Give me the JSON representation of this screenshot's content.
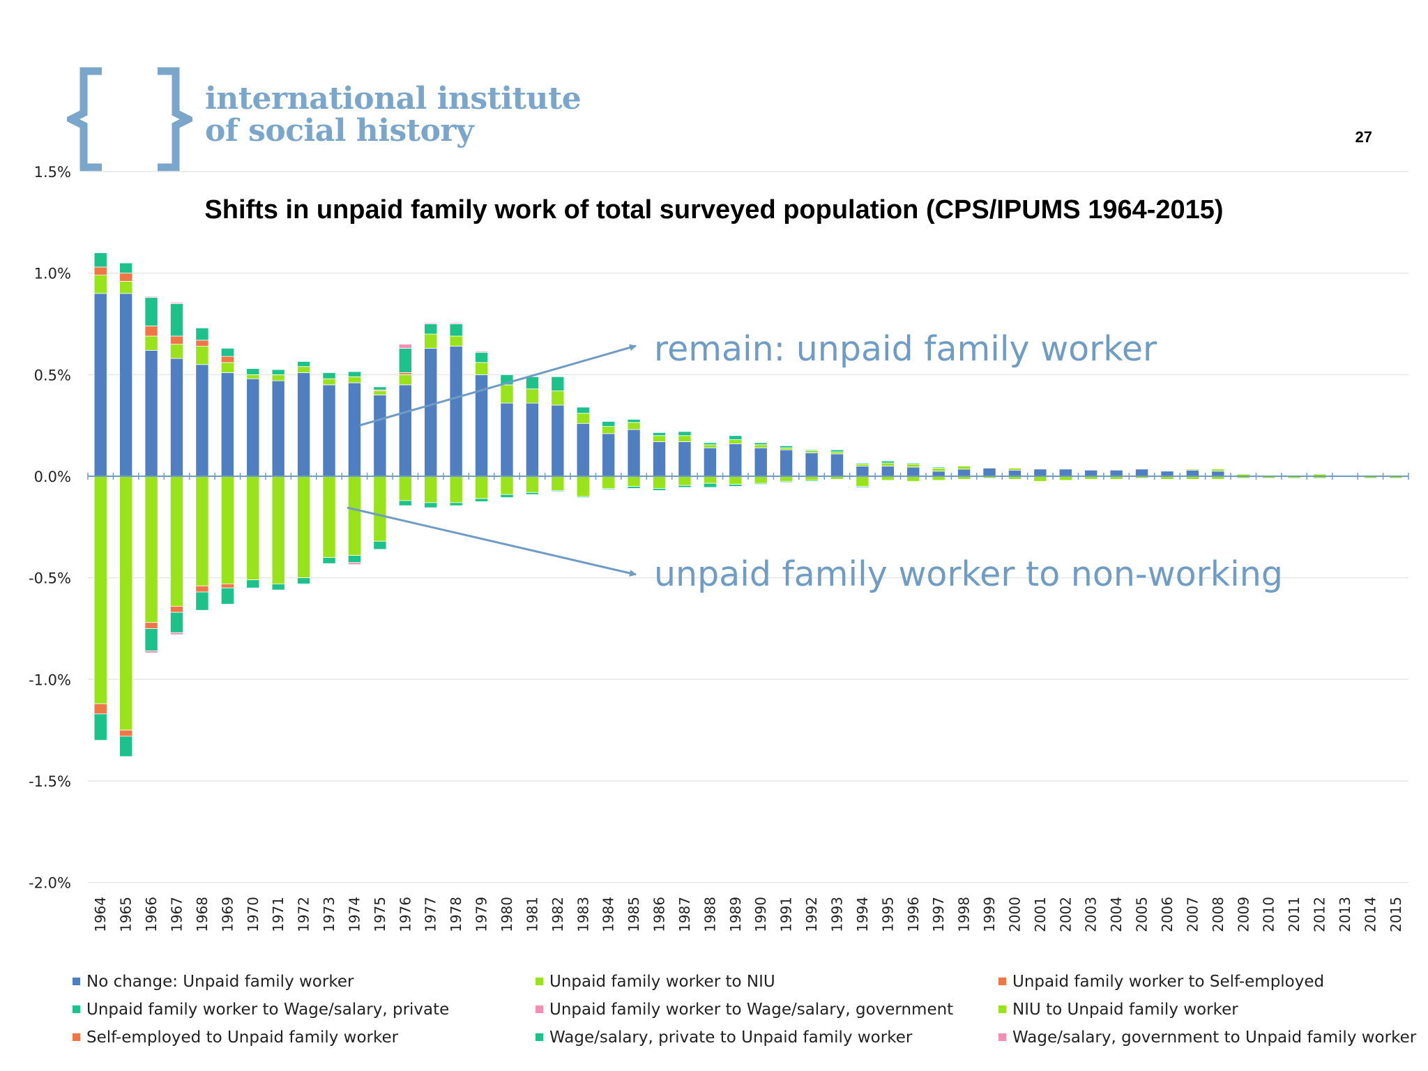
{
  "slide": {
    "logo_line1": "international institute",
    "logo_line2": "of social history",
    "page_number": "27",
    "logo_color": "#7aa6cc"
  },
  "annotations": {
    "remain": "remain: unpaid family worker",
    "nonworking": "unpaid family worker to non-working",
    "color": "#6f9cc4"
  },
  "chart_data": {
    "type": "bar",
    "stacked": true,
    "title": "Shifts in unpaid family work of total surveyed population (CPS/IPUMS 1964-2015)",
    "xlabel": "",
    "ylabel": "",
    "ylim": [
      -2.0,
      1.5
    ],
    "yticks": [
      "1.5%",
      "1.0%",
      "0.5%",
      "0.0%",
      "-0.5%",
      "-1.0%",
      "-1.5%",
      "-2.0%"
    ],
    "ytick_values": [
      1.5,
      1.0,
      0.5,
      0.0,
      -0.5,
      -1.0,
      -1.5,
      -2.0
    ],
    "grid": true,
    "legend_position": "bottom",
    "categories": [
      "1964",
      "1965",
      "1966",
      "1967",
      "1968",
      "1969",
      "1970",
      "1971",
      "1972",
      "1973",
      "1974",
      "1975",
      "1976",
      "1977",
      "1978",
      "1979",
      "1980",
      "1981",
      "1982",
      "1983",
      "1984",
      "1985",
      "1986",
      "1987",
      "1988",
      "1989",
      "1990",
      "1991",
      "1992",
      "1993",
      "1994",
      "1995",
      "1996",
      "1997",
      "1998",
      "1999",
      "2000",
      "2001",
      "2002",
      "2003",
      "2004",
      "2005",
      "2006",
      "2007",
      "2008",
      "2009",
      "2010",
      "2011",
      "2012",
      "2013",
      "2014",
      "2015"
    ],
    "series": [
      {
        "name": "No change: Unpaid family worker",
        "color": "#4f7fc0",
        "values": [
          0.9,
          0.9,
          0.62,
          0.58,
          0.55,
          0.51,
          0.48,
          0.47,
          0.51,
          0.45,
          0.46,
          0.4,
          0.45,
          0.63,
          0.64,
          0.5,
          0.36,
          0.36,
          0.35,
          0.26,
          0.21,
          0.23,
          0.17,
          0.17,
          0.14,
          0.16,
          0.14,
          0.13,
          0.115,
          0.11,
          0.05,
          0.05,
          0.045,
          0.025,
          0.035,
          0.04,
          0.03,
          0.035,
          0.035,
          0.03,
          0.03,
          0.035,
          0.025,
          0.03,
          0.025,
          0.0,
          0.0,
          0.0,
          0.0,
          0.0,
          0.0,
          0.0
        ]
      },
      {
        "name": "Unpaid family worker to NIU",
        "color": "#99e31a",
        "values": [
          -1.12,
          -1.25,
          -0.72,
          -0.64,
          -0.54,
          -0.53,
          -0.51,
          -0.53,
          -0.5,
          -0.4,
          -0.39,
          -0.32,
          -0.12,
          -0.13,
          -0.13,
          -0.11,
          -0.09,
          -0.08,
          -0.07,
          -0.1,
          -0.06,
          -0.05,
          -0.06,
          -0.045,
          -0.035,
          -0.04,
          -0.035,
          -0.025,
          -0.02,
          -0.015,
          -0.05,
          -0.02,
          -0.025,
          -0.02,
          -0.015,
          -0.01,
          -0.015,
          -0.025,
          -0.02,
          -0.015,
          -0.015,
          -0.01,
          -0.015,
          -0.015,
          -0.015,
          -0.01,
          -0.01,
          -0.01,
          -0.01,
          -0.005,
          -0.01,
          -0.01
        ]
      },
      {
        "name": "Unpaid family worker to Self-employed",
        "color": "#ef7645",
        "values": [
          -0.05,
          -0.03,
          -0.03,
          -0.03,
          -0.03,
          -0.02,
          0,
          0,
          0,
          0,
          0,
          0,
          0,
          0,
          0,
          0,
          0,
          0,
          0,
          0,
          0,
          0,
          0,
          0,
          0,
          0,
          0,
          0,
          0,
          0,
          0,
          0,
          0,
          0,
          0,
          0,
          0,
          0,
          0,
          0,
          0,
          0,
          0,
          0,
          0,
          0,
          0,
          0,
          0,
          0,
          0,
          0
        ]
      },
      {
        "name": "Unpaid family worker to Wage/salary, private",
        "color": "#1dc28a",
        "values": [
          -0.13,
          -0.1,
          -0.11,
          -0.1,
          -0.09,
          -0.08,
          -0.04,
          -0.03,
          -0.03,
          -0.03,
          -0.035,
          -0.04,
          -0.025,
          -0.025,
          -0.015,
          -0.015,
          -0.015,
          -0.01,
          -0.005,
          -0.005,
          -0.005,
          -0.01,
          -0.01,
          -0.01,
          -0.02,
          -0.01,
          -0.005,
          -0.005,
          -0.005,
          0,
          -0.005,
          0,
          0,
          0,
          0,
          0,
          0,
          0,
          0,
          0,
          0,
          0,
          0,
          0,
          0,
          0,
          0,
          0,
          0,
          0,
          0,
          0
        ]
      },
      {
        "name": "Unpaid family worker to Wage/salary, government",
        "color": "#f48fb1",
        "values": [
          0,
          0,
          -0.01,
          -0.01,
          0,
          0,
          0,
          0,
          0,
          0,
          -0.01,
          0,
          0,
          0,
          0,
          0,
          0,
          0,
          0,
          0,
          0,
          0,
          0,
          0,
          0,
          0,
          0,
          0,
          0,
          0,
          0,
          0,
          0,
          0,
          0,
          0,
          0,
          0,
          0,
          0,
          0,
          0,
          0,
          0,
          0,
          0,
          0,
          0,
          0,
          0,
          0,
          0
        ]
      },
      {
        "name": "NIU to Unpaid family worker",
        "color": "#99e31a",
        "values": [
          0.09,
          0.06,
          0.07,
          0.07,
          0.09,
          0.05,
          0.02,
          0.03,
          0.03,
          0.03,
          0.03,
          0.02,
          0.05,
          0.07,
          0.05,
          0.06,
          0.09,
          0.07,
          0.07,
          0.05,
          0.035,
          0.035,
          0.03,
          0.03,
          0.015,
          0.02,
          0.015,
          0.01,
          0.01,
          0.01,
          0.01,
          0.015,
          0.015,
          0.015,
          0.015,
          0.0,
          0.01,
          0.0,
          0.0,
          0.0,
          0.0,
          0.0,
          0.0,
          0.005,
          0.01,
          0.01,
          0.005,
          0.005,
          0.01,
          0.0,
          0.0,
          0.0
        ]
      },
      {
        "name": "Self-employed to Unpaid family worker",
        "color": "#ef7645",
        "values": [
          0.04,
          0.04,
          0.05,
          0.04,
          0.03,
          0.03,
          0,
          0,
          0,
          0,
          0,
          0.005,
          0.01,
          0,
          0,
          0,
          0,
          0,
          0,
          0,
          0,
          0,
          0,
          0,
          0,
          0,
          0,
          0,
          0,
          0,
          0,
          0,
          0,
          0,
          0,
          0,
          0,
          0,
          0,
          0,
          0,
          0,
          0,
          0,
          0,
          0,
          0,
          0,
          0,
          0,
          0,
          0
        ]
      },
      {
        "name": "Wage/salary, private to Unpaid family worker",
        "color": "#1dc28a",
        "values": [
          0.07,
          0.05,
          0.14,
          0.16,
          0.06,
          0.04,
          0.03,
          0.025,
          0.025,
          0.03,
          0.025,
          0.015,
          0.12,
          0.05,
          0.06,
          0.05,
          0.05,
          0.06,
          0.07,
          0.03,
          0.025,
          0.015,
          0.015,
          0.02,
          0.01,
          0.02,
          0.01,
          0.01,
          0.005,
          0.01,
          0.005,
          0.01,
          0.005,
          0.005,
          0,
          0,
          0,
          0,
          0,
          0,
          0,
          0,
          0,
          0,
          0,
          0,
          0,
          0,
          0,
          0,
          0,
          0
        ]
      },
      {
        "name": "Wage/salary, government to Unpaid family worker",
        "color": "#f48fb1",
        "values": [
          0,
          0,
          0.005,
          0.005,
          0,
          0,
          0,
          0,
          0,
          0,
          0,
          0,
          0.02,
          0.005,
          0.005,
          0.005,
          0,
          0,
          0,
          0,
          0,
          0,
          0,
          0,
          0,
          0,
          0,
          0,
          0,
          0,
          0,
          0,
          0,
          0,
          0,
          0,
          0,
          0,
          0,
          0,
          0,
          0,
          0,
          0,
          0,
          0,
          0,
          0,
          0,
          0,
          0,
          0
        ]
      }
    ]
  }
}
